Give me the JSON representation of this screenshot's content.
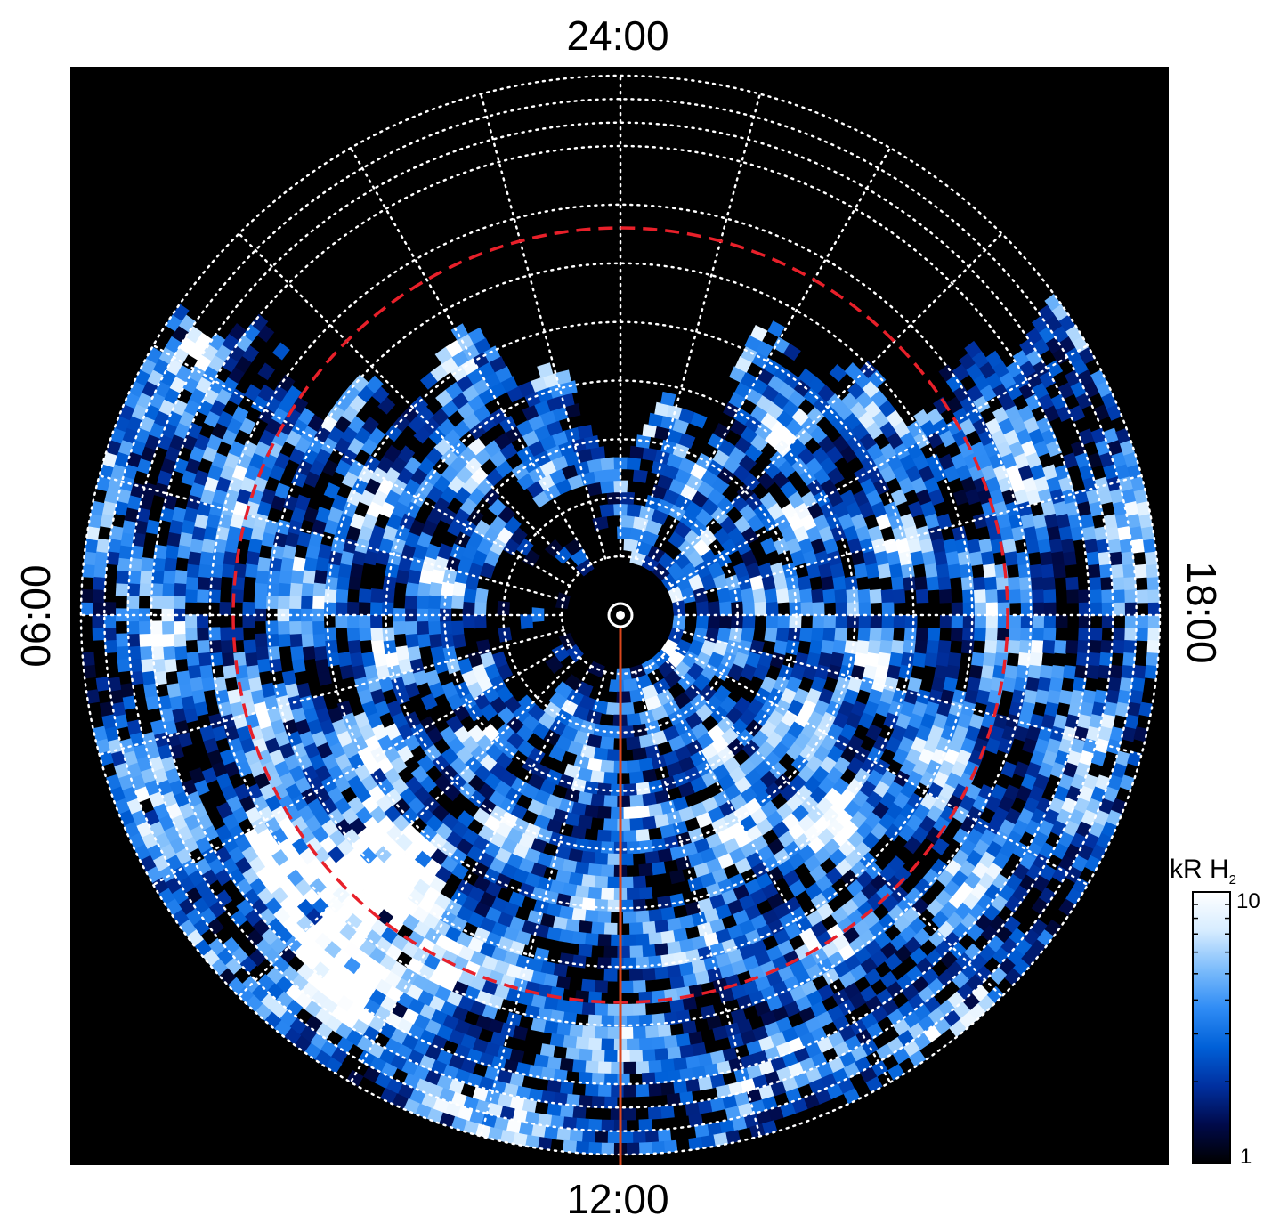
{
  "chart_data": {
    "type": "heatmap",
    "projection": "polar",
    "local_time_labels": {
      "top": "24:00",
      "bottom": "12:00",
      "left": "06:00",
      "right": "18:00"
    },
    "colorbar": {
      "unit": "kR H",
      "unit_subscript": "2",
      "max_label": "10",
      "min_label": "1",
      "range": [
        1,
        10
      ],
      "scale": "log",
      "colormap": [
        "#000000",
        "#000a4a",
        "#0030a0",
        "#0060d8",
        "#2f8cf5",
        "#7cbcfb",
        "#d6ecff",
        "#ffffff"
      ]
    },
    "grid": {
      "style": "dotted",
      "color": "#ffffff",
      "colatitude_rings_deg": [
        5,
        10,
        15,
        20,
        25,
        30,
        35,
        40,
        42,
        44,
        46
      ],
      "meridian_step_hours": 1
    },
    "reference_oval": {
      "style": "dashed",
      "color": "#e8202a",
      "colatitude_deg": 17
    },
    "noon_meridian_line": {
      "color": "#d9461c"
    },
    "background_color": "#000000"
  }
}
